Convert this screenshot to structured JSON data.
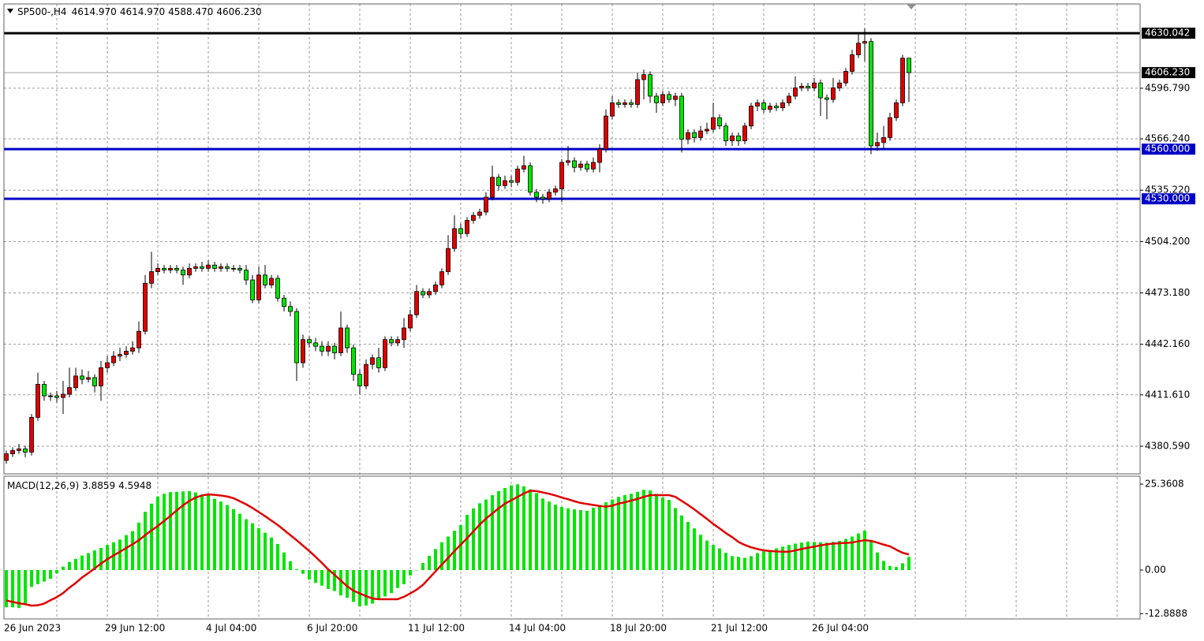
{
  "chart_data": [
    {
      "type": "candlestick",
      "title": "SP500-,H4",
      "last_bar_labels": {
        "open": "4614.970",
        "high": "4614.970",
        "low": "4588.470",
        "close": "4606.230"
      },
      "categories": [
        "26 Jun 2023",
        null,
        null,
        null,
        null,
        null,
        null,
        null,
        null,
        null,
        null,
        null,
        null,
        null,
        null,
        null,
        "29 Jun 12:00",
        null,
        null,
        null,
        null,
        null,
        null,
        null,
        null,
        null,
        null,
        null,
        null,
        null,
        null,
        null,
        "4 Jul 04:00",
        null,
        null,
        null,
        null,
        null,
        null,
        null,
        null,
        null,
        null,
        null,
        null,
        null,
        null,
        null,
        "6 Jul 20:00",
        null,
        null,
        null,
        null,
        null,
        null,
        null,
        null,
        null,
        null,
        null,
        null,
        null,
        null,
        null,
        "11 Jul 12:00",
        null,
        null,
        null,
        null,
        null,
        null,
        null,
        null,
        null,
        null,
        null,
        null,
        null,
        null,
        null,
        "14 Jul 04:00",
        null,
        null,
        null,
        null,
        null,
        null,
        null,
        null,
        null,
        null,
        null,
        null,
        null,
        null,
        null,
        "18 Jul 20:00",
        null,
        null,
        null,
        null,
        null,
        null,
        null,
        null,
        null,
        null,
        null,
        null,
        null,
        null,
        null,
        "21 Jul 12:00",
        null,
        null,
        null,
        null,
        null,
        null,
        null,
        null,
        null,
        null,
        null,
        null,
        null,
        null,
        null,
        "26 Jul 04:00",
        null,
        null,
        null,
        null,
        null,
        null,
        null,
        null,
        null,
        null,
        null,
        null,
        null,
        null,
        null
      ],
      "open": [
        4372,
        4376,
        4378,
        4379,
        4377,
        4398,
        4418,
        4411,
        4411,
        4410,
        4412,
        4416,
        4423,
        4421,
        4422,
        4417,
        4428,
        4431,
        4435,
        4436,
        4438,
        4440,
        4450,
        4479,
        4486,
        4488,
        4487,
        4488,
        4487,
        4484,
        4488,
        4489,
        4488,
        4490,
        4488,
        4489,
        4488,
        4488,
        4487,
        4481,
        4469,
        4484,
        4478,
        4482,
        4470,
        4465,
        4462,
        4431,
        4445,
        4443,
        4441,
        4438,
        4441,
        4437,
        4452,
        4440,
        4424,
        4417,
        4430,
        4434,
        4428,
        4445,
        4443,
        4445,
        4452,
        4460,
        4474,
        4472,
        4474,
        4478,
        4486,
        4500,
        4512,
        4509,
        4517,
        4520,
        4522,
        4531,
        4543,
        4538,
        4541,
        4540,
        4548,
        4550,
        4534,
        4531,
        4530,
        4534,
        4536,
        4552,
        4553,
        4549,
        4551,
        4548,
        4552,
        4560,
        4580,
        4588,
        4587,
        4588,
        4587,
        4602,
        4605,
        4592,
        4588,
        4593,
        4590,
        4592,
        4566,
        4570,
        4567,
        4571,
        4572,
        4579,
        4574,
        4565,
        4568,
        4565,
        4574,
        4586,
        4588,
        4584,
        4586,
        4585,
        4588,
        4592,
        4597,
        4598,
        4597,
        4600,
        4591,
        4590,
        4597,
        4600,
        4607,
        4617,
        4624,
        4625,
        4562,
        4564,
        4567,
        4579,
        4588,
        4614.97
      ],
      "high": [
        4378,
        4380,
        4382,
        4381,
        4400,
        4425,
        4420,
        4413,
        4414,
        4420,
        4428,
        4428,
        4427,
        4426,
        4424,
        4432,
        4435,
        4438,
        4440,
        4441,
        4444,
        4456,
        4484,
        4498,
        4491,
        4490,
        4490,
        4490,
        4489,
        4491,
        4491,
        4492,
        4493,
        4492,
        4491,
        4491,
        4490,
        4490,
        4490,
        4484,
        4489,
        4490,
        4484,
        4484,
        4472,
        4468,
        4464,
        4448,
        4447,
        4446,
        4444,
        4444,
        4443,
        4462,
        4454,
        4442,
        4427,
        4433,
        4436,
        4440,
        4447,
        4447,
        4447,
        4458,
        4463,
        4478,
        4476,
        4476,
        4480,
        4488,
        4508,
        4520,
        4515,
        4519,
        4522,
        4524,
        4534,
        4550,
        4545,
        4544,
        4544,
        4550,
        4556,
        4552,
        4536,
        4533,
        4536,
        4538,
        4554,
        4562,
        4555,
        4553,
        4553,
        4555,
        4563,
        4584,
        4592,
        4590,
        4590,
        4590,
        4606,
        4608,
        4607,
        4594,
        4595,
        4595,
        4594,
        4594,
        4572,
        4572,
        4574,
        4576,
        4588,
        4581,
        4576,
        4570,
        4570,
        4576,
        4588,
        4590,
        4590,
        4588,
        4588,
        4590,
        4594,
        4604,
        4600,
        4600,
        4603,
        4602,
        4593,
        4603,
        4602,
        4609,
        4620,
        4630,
        4633,
        4627,
        4570,
        4574,
        4582,
        4590,
        4617,
        4614.97
      ],
      "low": [
        4370,
        4374,
        4376,
        4374,
        4375,
        4396,
        4408,
        4408,
        4407,
        4400,
        4410,
        4414,
        4418,
        4419,
        4413,
        4408,
        4425,
        4429,
        4432,
        4434,
        4436,
        4437,
        4448,
        4476,
        4484,
        4485,
        4485,
        4485,
        4478,
        4482,
        4486,
        4486,
        4486,
        4486,
        4486,
        4486,
        4486,
        4485,
        4478,
        4467,
        4467,
        4476,
        4476,
        4468,
        4462,
        4459,
        4420,
        4428,
        4440,
        4438,
        4435,
        4435,
        4433,
        4435,
        4437,
        4420,
        4412,
        4415,
        4427,
        4425,
        4426,
        4441,
        4441,
        4440,
        4450,
        4458,
        4470,
        4470,
        4472,
        4476,
        4484,
        4498,
        4506,
        4507,
        4515,
        4518,
        4520,
        4529,
        4535,
        4536,
        4537,
        4538,
        4546,
        4532,
        4528,
        4527,
        4528,
        4532,
        4528,
        4550,
        4546,
        4547,
        4546,
        4546,
        4546,
        4558,
        4578,
        4585,
        4585,
        4585,
        4585,
        4590,
        4588,
        4582,
        4586,
        4588,
        4586,
        4558,
        4563,
        4564,
        4565,
        4569,
        4570,
        4572,
        4562,
        4562,
        4562,
        4563,
        4572,
        4583,
        4582,
        4582,
        4583,
        4583,
        4586,
        4590,
        4595,
        4595,
        4595,
        4580,
        4578,
        4588,
        4595,
        4598,
        4605,
        4615,
        4613,
        4557,
        4559,
        4560,
        4565,
        4577,
        4586,
        4588.47
      ],
      "close": [
        4376,
        4378,
        4379,
        4377,
        4398,
        4418,
        4411,
        4411,
        4410,
        4412,
        4416,
        4423,
        4421,
        4422,
        4417,
        4428,
        4431,
        4435,
        4436,
        4438,
        4440,
        4450,
        4479,
        4486,
        4488,
        4487,
        4488,
        4487,
        4484,
        4488,
        4489,
        4488,
        4490,
        4488,
        4489,
        4488,
        4488,
        4487,
        4481,
        4469,
        4484,
        4478,
        4482,
        4470,
        4465,
        4462,
        4431,
        4445,
        4443,
        4441,
        4438,
        4441,
        4437,
        4452,
        4440,
        4424,
        4417,
        4430,
        4434,
        4428,
        4445,
        4443,
        4445,
        4452,
        4460,
        4474,
        4472,
        4474,
        4478,
        4486,
        4500,
        4512,
        4509,
        4517,
        4520,
        4522,
        4531,
        4543,
        4538,
        4541,
        4540,
        4548,
        4550,
        4534,
        4531,
        4530,
        4534,
        4536,
        4552,
        4553,
        4549,
        4551,
        4548,
        4552,
        4560,
        4580,
        4588,
        4587,
        4588,
        4587,
        4602,
        4605,
        4592,
        4588,
        4593,
        4590,
        4592,
        4566,
        4570,
        4567,
        4571,
        4572,
        4579,
        4574,
        4565,
        4568,
        4565,
        4574,
        4586,
        4588,
        4584,
        4586,
        4585,
        4588,
        4592,
        4597,
        4598,
        4597,
        4600,
        4591,
        4590,
        4597,
        4600,
        4607,
        4617,
        4624,
        4625,
        4562,
        4564,
        4567,
        4579,
        4588,
        4614.97,
        4606.23
      ],
      "up_color": "#e00000",
      "down_color": "#00e600",
      "ylim": [
        4363.9,
        4647.7
      ],
      "yticks": [
        {
          "value": 4596.79,
          "label": "4596.790"
        },
        {
          "value": 4566.24,
          "label": "4566.240"
        },
        {
          "value": 4535.22,
          "label": "4535.220"
        },
        {
          "value": 4504.2,
          "label": "4504.200"
        },
        {
          "value": 4473.18,
          "label": "4473.180"
        },
        {
          "value": 4442.16,
          "label": "4442.160"
        },
        {
          "value": 4411.61,
          "label": "4411.610"
        },
        {
          "value": 4380.59,
          "label": "4380.590"
        }
      ],
      "hlines": [
        {
          "value": 4630.042,
          "label": "4630.042",
          "color": "#000000"
        },
        {
          "value": 4560,
          "label": "4560.000",
          "color": "#0000c8"
        },
        {
          "value": 4530,
          "label": "4530.000",
          "color": "#0000c8"
        }
      ],
      "grid": true
    },
    {
      "type": "macd",
      "title": "MACD(12,26,9)",
      "histogram": {
        "color": "#00e600",
        "values": [
          -11,
          -11,
          -11.2,
          -10,
          -5,
          -4.2,
          -3.4,
          -2.6,
          -1,
          1,
          2.4,
          3.3,
          4.3,
          5,
          5.8,
          6.5,
          7.4,
          8.2,
          9,
          10.3,
          11.5,
          14,
          17.2,
          19.6,
          21.7,
          22.5,
          23,
          23.1,
          23.2,
          23.3,
          22.9,
          22.3,
          22,
          21,
          20.2,
          19.2,
          18,
          16.6,
          15,
          13.8,
          12.4,
          11,
          9.6,
          7.7,
          5.2,
          2.6,
          0.3,
          -1.1,
          -2.8,
          -3.8,
          -4.6,
          -5.6,
          -6.2,
          -7.5,
          -8.2,
          -9.4,
          -10.7,
          -10.5,
          -9.9,
          -8.8,
          -7.8,
          -6.8,
          -5.3,
          -4.2,
          -1.6,
          0,
          2.1,
          4.2,
          6.2,
          8.2,
          9.9,
          11.6,
          13.3,
          16.3,
          18.2,
          19.7,
          20.8,
          22.1,
          23.3,
          24.2,
          25,
          25.3,
          24.7,
          23.8,
          22.7,
          21.1,
          20.2,
          19.3,
          18.6,
          18.2,
          17.9,
          17.7,
          17.5,
          18.4,
          19.2,
          20,
          20.8,
          21.6,
          22.1,
          22.5,
          23.1,
          23.7,
          23.5,
          22.5,
          21.4,
          20.7,
          18.3,
          16.1,
          14.2,
          12.3,
          10.4,
          8.7,
          7.4,
          6.4,
          5.1,
          4.1,
          3.9,
          3.6,
          4.1,
          5,
          5.5,
          5.9,
          6.4,
          6.9,
          7.4,
          7.8,
          8.1,
          8.4,
          8.3,
          8.2,
          8.1,
          8.3,
          8.6,
          9.2,
          9.9,
          10.8,
          11.6,
          8.4,
          5.2,
          2.7,
          1.2,
          0.9,
          2,
          3.8859
        ]
      },
      "signal": {
        "color": "#e00000",
        "values": [
          -9,
          -9.4,
          -9.8,
          -10.1,
          -10.5,
          -10.4,
          -9.9,
          -8.9,
          -8,
          -6.8,
          -5.2,
          -3.8,
          -2.2,
          -0.9,
          0.5,
          1.9,
          3.2,
          4.3,
          5.4,
          6.5,
          7.6,
          8.8,
          10.3,
          11.7,
          13,
          14.5,
          16,
          17.6,
          19.1,
          20.4,
          21.4,
          22,
          22.3,
          22.2,
          22,
          21.7,
          21.2,
          20.3,
          19.4,
          18.3,
          17.1,
          15.9,
          14.6,
          13.3,
          11.8,
          10.3,
          8.8,
          7.2,
          5.6,
          3.9,
          2.1,
          0.2,
          -1.4,
          -3.1,
          -4.8,
          -6.1,
          -6.9,
          -7.7,
          -8.4,
          -8.6,
          -8.6,
          -8.6,
          -8.6,
          -7.9,
          -6.9,
          -5.8,
          -4.4,
          -2.4,
          -0.4,
          1.6,
          3.6,
          5.6,
          7.5,
          9.4,
          11.4,
          13.4,
          15.2,
          16.7,
          18.2,
          19.6,
          20.6,
          21.6,
          22.6,
          23.4,
          23.3,
          22.9,
          22.5,
          22,
          21.4,
          20.9,
          20.3,
          19.8,
          19.5,
          19.2,
          18.9,
          18.7,
          19,
          19.6,
          20,
          20.5,
          21,
          21.6,
          22.1,
          22.1,
          22.1,
          22.1,
          21.6,
          20.4,
          19.2,
          17.9,
          16.5,
          15.1,
          13.6,
          12.3,
          10.9,
          9.7,
          8.3,
          7.4,
          6.7,
          6.2,
          5.8,
          5.6,
          5.5,
          5.4,
          5.4,
          5.8,
          6.2,
          6.6,
          6.9,
          7.3,
          7.6,
          7.8,
          7.9,
          8,
          8.1,
          8.5,
          8.8,
          8.6,
          8.1,
          7.5,
          7,
          6,
          5.1,
          4.5948
        ]
      },
      "ylim": [
        -14.43,
        27.69
      ],
      "yticks": [
        25.3608,
        {
          "value": 0,
          "label": "0.00"
        },
        -12.8888
      ]
    }
  ]
}
